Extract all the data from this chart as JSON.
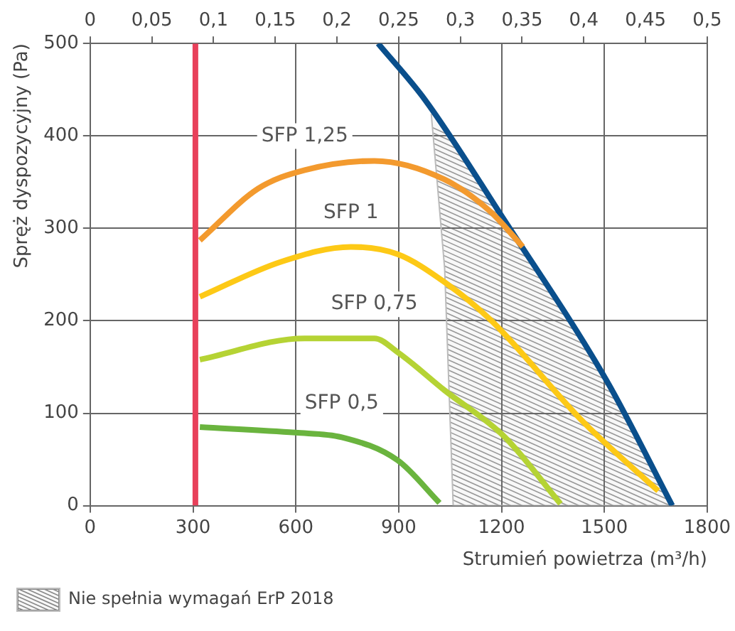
{
  "chart_data": {
    "type": "line",
    "xlabel": "Strumień powietrza (m³/h)",
    "ylabel": "Spręż dyspozycyjny (Pa)",
    "xlim": [
      0,
      1800
    ],
    "xticks": [
      0,
      300,
      600,
      900,
      1200,
      1500,
      1800
    ],
    "x2lim": [
      0,
      0.5
    ],
    "x2ticks": [
      0,
      {
        "value": 0.05,
        "label": "0,05"
      },
      {
        "value": 0.1,
        "label": "0,1"
      },
      {
        "value": 0.15,
        "label": "0,15"
      },
      {
        "value": 0.2,
        "label": "0,2"
      },
      {
        "value": 0.25,
        "label": "0,25"
      },
      {
        "value": 0.3,
        "label": "0,3"
      },
      {
        "value": 0.35,
        "label": "0,35"
      },
      {
        "value": 0.4,
        "label": "0,4"
      },
      {
        "value": 0.45,
        "label": "0,45"
      },
      {
        "value": 0.5,
        "label": "0,5"
      }
    ],
    "ylim": [
      0,
      500
    ],
    "yticks": [
      0,
      100,
      200,
      300,
      400,
      500
    ],
    "grid": true,
    "legend": "bottom left",
    "marker": "none",
    "line_style": "solid",
    "series": [
      {
        "type": "area",
        "name": "Nie spełnia wymagań ErP 2018",
        "color": "#888888",
        "x": [
          995,
          1034,
          1059,
          1698,
          1507,
          1201,
          1000
        ],
        "values": [
          424,
          257,
          0,
          0,
          135,
          313,
          424
        ]
      },
      {
        "color": "#0a4f8c",
        "x": [
          840,
          977,
          1201,
          1507,
          1698
        ],
        "values": [
          500,
          439,
          313,
          135,
          0
        ]
      },
      {
        "name": "SFP 1,25",
        "color": "#f39a2e",
        "x": [
          320,
          490,
          626,
          829,
          1033,
          1168,
          1262
        ],
        "values": [
          287,
          343,
          363,
          373,
          353,
          318,
          280
        ]
      },
      {
        "name": "SFP 1",
        "color": "#fdc916",
        "x": [
          320,
          558,
          761,
          897,
          1033,
          1168,
          1440,
          1657
        ],
        "values": [
          226,
          264,
          280,
          272,
          242,
          201,
          90,
          16
        ]
      },
      {
        "name": "SFP 0,75",
        "color": "#b5d334",
        "x": [
          320,
          626,
          829,
          897,
          1033,
          1210,
          1372
        ],
        "values": [
          158,
          181,
          181,
          166,
          125,
          74,
          2
        ]
      },
      {
        "name": "SFP 0,5",
        "color": "#6ab43e",
        "x": [
          320,
          599,
          734,
          897,
          1019
        ],
        "values": [
          85,
          79,
          74,
          49,
          3
        ]
      },
      {
        "color": "#e8405a",
        "x": [
          307,
          307
        ],
        "values": [
          0,
          500
        ]
      }
    ]
  }
}
